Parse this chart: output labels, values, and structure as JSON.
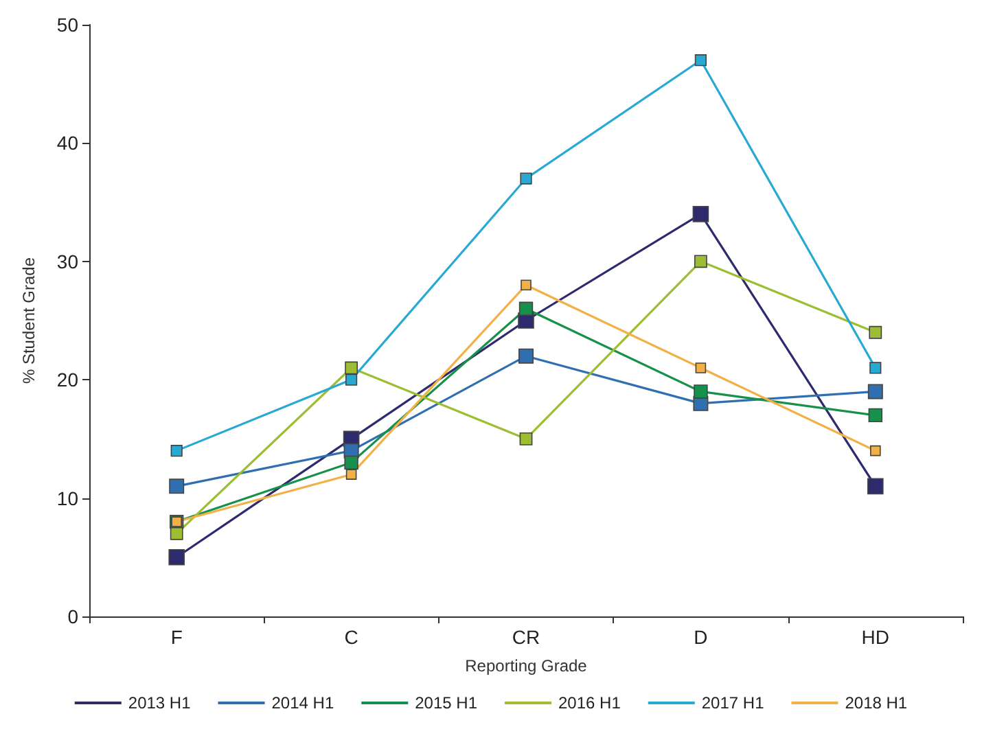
{
  "chart_data": {
    "type": "line",
    "xlabel": "Reporting Grade",
    "ylabel": "% Student Grade",
    "categories": [
      "F",
      "C",
      "CR",
      "D",
      "HD"
    ],
    "series": [
      {
        "name": "2013 H1",
        "color": "#2e2a6e",
        "values": [
          5,
          15,
          25,
          34,
          11
        ]
      },
      {
        "name": "2014 H1",
        "color": "#2f6fb0",
        "values": [
          11,
          14,
          22,
          18,
          19
        ]
      },
      {
        "name": "2015 H1",
        "color": "#16904a",
        "values": [
          8,
          13,
          26,
          19,
          17
        ]
      },
      {
        "name": "2016 H1",
        "color": "#9dbd32",
        "values": [
          7,
          21,
          15,
          30,
          24
        ]
      },
      {
        "name": "2017 H1",
        "color": "#27a9d4",
        "values": [
          14,
          20,
          37,
          47,
          21
        ]
      },
      {
        "name": "2018 H1",
        "color": "#f2b046",
        "values": [
          8,
          12,
          28,
          21,
          14
        ]
      }
    ],
    "ylim": [
      0,
      50
    ],
    "yticks": [
      0,
      10,
      20,
      30,
      40,
      50
    ],
    "grid": false,
    "legend": "bottom",
    "marker": "square",
    "line_style": "solid"
  }
}
